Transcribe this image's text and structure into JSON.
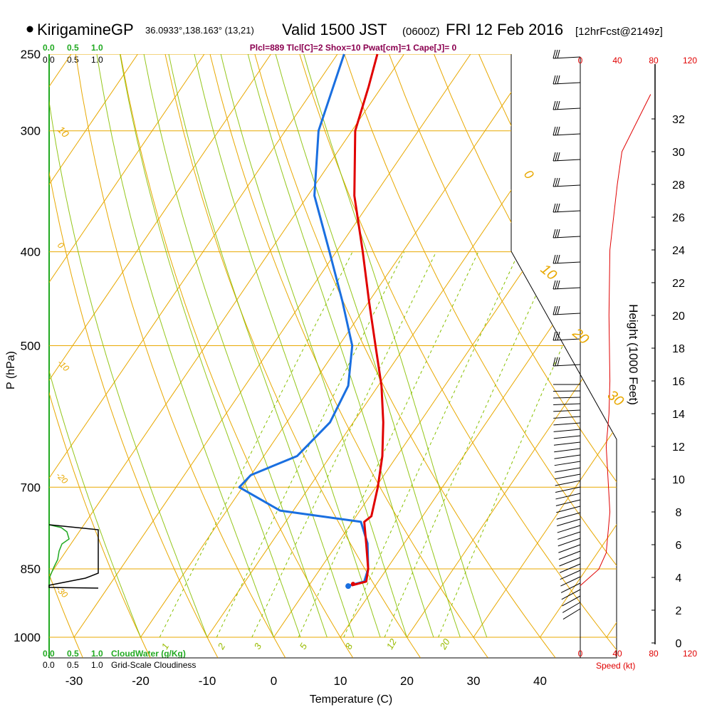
{
  "header": {
    "station": "KirigamineGP",
    "coords": "36.0933°,138.163° (13,21)",
    "valid": "Valid 1500 JST",
    "zulu": "(0600Z)",
    "date": "FRI 12 Feb 2016",
    "forecast": "[12hrFcst@2149z]",
    "indices": "Plcl=889 Tlcl[C]=2 Shox=10 Pwat[cm]=1 Cape[J]= 0"
  },
  "colors": {
    "temperature": "#e00000",
    "dewpoint": "#1a6fe0",
    "isotherm": "#e8a800",
    "dry_adiabat": "#88c000",
    "moist_adiabat": "#b8d800",
    "cloud_water": "#22aa22",
    "speed": "#e00000"
  },
  "chart_data": {
    "type": "skew-t",
    "title": "KirigamineGP Valid 1500 JST (0600Z) FRI 12 Feb 2016",
    "xlabel": "Temperature (C)",
    "ylabel": "P (hPa)",
    "y2label": "Height (1000 Feet)",
    "pressure_ticks": [
      "250",
      "300",
      "400",
      "500",
      "700",
      "850",
      "1000"
    ],
    "temperature_ticks": [
      "-30",
      "-20",
      "-10",
      "0",
      "10",
      "20",
      "30",
      "40"
    ],
    "height_ticks": [
      "0",
      "2",
      "4",
      "6",
      "8",
      "10",
      "12",
      "14",
      "16",
      "18",
      "20",
      "22",
      "24",
      "26",
      "28",
      "30",
      "32"
    ],
    "isotherm_labels": [
      "10",
      "0",
      "-10",
      "-20",
      "-30",
      "0",
      "10",
      "20",
      "30"
    ],
    "mixing_ratio_labels": [
      "1",
      "2",
      "3",
      "5",
      "8",
      "12",
      "20"
    ],
    "temperature_profile": [
      {
        "p": 250,
        "t": -44
      },
      {
        "p": 270,
        "t": -42
      },
      {
        "p": 300,
        "t": -39.5
      },
      {
        "p": 350,
        "t": -33
      },
      {
        "p": 400,
        "t": -26
      },
      {
        "p": 450,
        "t": -20
      },
      {
        "p": 500,
        "t": -14.5
      },
      {
        "p": 550,
        "t": -9.5
      },
      {
        "p": 600,
        "t": -5.5
      },
      {
        "p": 650,
        "t": -2.2
      },
      {
        "p": 700,
        "t": 0.3
      },
      {
        "p": 750,
        "t": 2.3
      },
      {
        "p": 760,
        "t": 1.8
      },
      {
        "p": 800,
        "t": 4.3
      },
      {
        "p": 850,
        "t": 7.2
      },
      {
        "p": 876,
        "t": 8.2
      },
      {
        "p": 884,
        "t": 6.4
      }
    ],
    "dewpoint_profile": [
      {
        "p": 250,
        "t": -49
      },
      {
        "p": 300,
        "t": -45
      },
      {
        "p": 350,
        "t": -39
      },
      {
        "p": 400,
        "t": -31
      },
      {
        "p": 450,
        "t": -24
      },
      {
        "p": 500,
        "t": -18
      },
      {
        "p": 550,
        "t": -14.5
      },
      {
        "p": 600,
        "t": -13.5
      },
      {
        "p": 650,
        "t": -15
      },
      {
        "p": 680,
        "t": -20
      },
      {
        "p": 700,
        "t": -20.5
      },
      {
        "p": 740,
        "t": -12
      },
      {
        "p": 760,
        "t": 1.3
      },
      {
        "p": 800,
        "t": 4.5
      },
      {
        "p": 850,
        "t": 7.2
      },
      {
        "p": 876,
        "t": 7.9
      },
      {
        "p": 884,
        "t": 6.1
      }
    ],
    "speed_axis": {
      "label": "Speed (kt)",
      "ticks_red": [
        "0",
        "40",
        "80"
      ],
      "ticks_black": [
        "120"
      ]
    },
    "wind_speed_profile": [
      {
        "h": 3.5,
        "kt": 0
      },
      {
        "h": 4.5,
        "kt": 20
      },
      {
        "h": 5.5,
        "kt": 28
      },
      {
        "h": 8,
        "kt": 32
      },
      {
        "h": 12,
        "kt": 28
      },
      {
        "h": 14,
        "kt": 31
      },
      {
        "h": 16,
        "kt": 32
      },
      {
        "h": 20,
        "kt": 31
      },
      {
        "h": 24,
        "kt": 32
      },
      {
        "h": 28,
        "kt": 40
      },
      {
        "h": 30,
        "kt": 45
      },
      {
        "h": 33.5,
        "kt": 76
      }
    ],
    "cloud_water": {
      "label": "CloudWater (g/Kg)",
      "ticks": [
        "0.0",
        "0.5",
        "1.0"
      ]
    },
    "cloudiness": {
      "label": "Grid-Scale Cloudiness",
      "ticks": [
        "0.0",
        "0.5",
        "1.0"
      ]
    }
  }
}
